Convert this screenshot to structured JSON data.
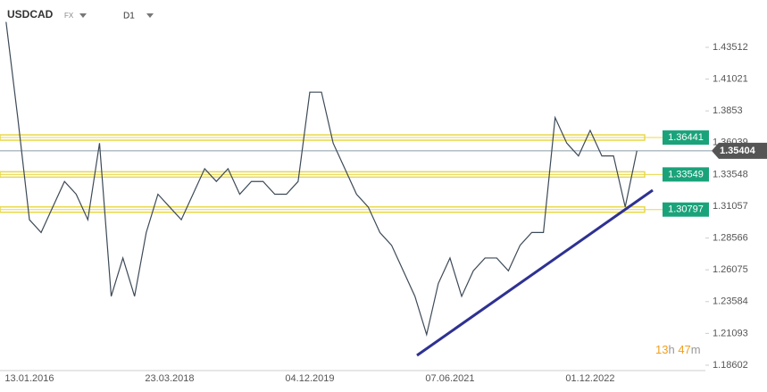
{
  "header": {
    "symbol": "USDCAD",
    "market": "FX",
    "interval": "D1",
    "countdown": {
      "hours": "13",
      "hours_unit": "h",
      "minutes": "47",
      "minutes_unit": "m"
    }
  },
  "chart_data": {
    "type": "line",
    "categories": [
      null,
      null,
      "13.01.2016",
      null,
      null,
      null,
      null,
      null,
      null,
      null,
      null,
      null,
      null,
      null,
      "23.03.2018",
      null,
      null,
      null,
      null,
      null,
      null,
      null,
      null,
      null,
      null,
      null,
      "04.12.2019",
      null,
      null,
      null,
      null,
      null,
      null,
      null,
      null,
      null,
      null,
      null,
      "07.06.2021",
      null,
      null,
      null,
      null,
      null,
      null,
      null,
      null,
      null,
      null,
      null,
      "01.12.2022",
      null,
      null,
      null,
      null
    ],
    "series": [
      {
        "name": "USDCAD",
        "color": "#3d4a57",
        "values": [
          1.455,
          1.38,
          1.3,
          1.29,
          1.31,
          1.33,
          1.32,
          1.3,
          1.36,
          1.24,
          1.27,
          1.24,
          1.29,
          1.32,
          1.31,
          1.3,
          1.32,
          1.34,
          1.33,
          1.34,
          1.32,
          1.33,
          1.33,
          1.32,
          1.32,
          1.33,
          1.4,
          1.4,
          1.36,
          1.34,
          1.32,
          1.31,
          1.29,
          1.28,
          1.26,
          1.24,
          1.21,
          1.25,
          1.27,
          1.24,
          1.26,
          1.27,
          1.27,
          1.26,
          1.28,
          1.29,
          1.29,
          1.38,
          1.36,
          1.35,
          1.37,
          1.35,
          1.35,
          1.31,
          1.354
        ]
      }
    ],
    "ylim": [
      1.1818,
      1.4722
    ],
    "yticks": [
      1.18602,
      1.21093,
      1.23584,
      1.26075,
      1.28566,
      1.31057,
      1.33548,
      1.36039,
      1.3853,
      1.41021,
      1.43512
    ],
    "levels": [
      1.36441,
      1.33549,
      1.30797
    ],
    "level_color": "#1aa37a",
    "band_color": "#e8d84a",
    "current_price": 1.35404,
    "trend_color": "#2e3192"
  }
}
